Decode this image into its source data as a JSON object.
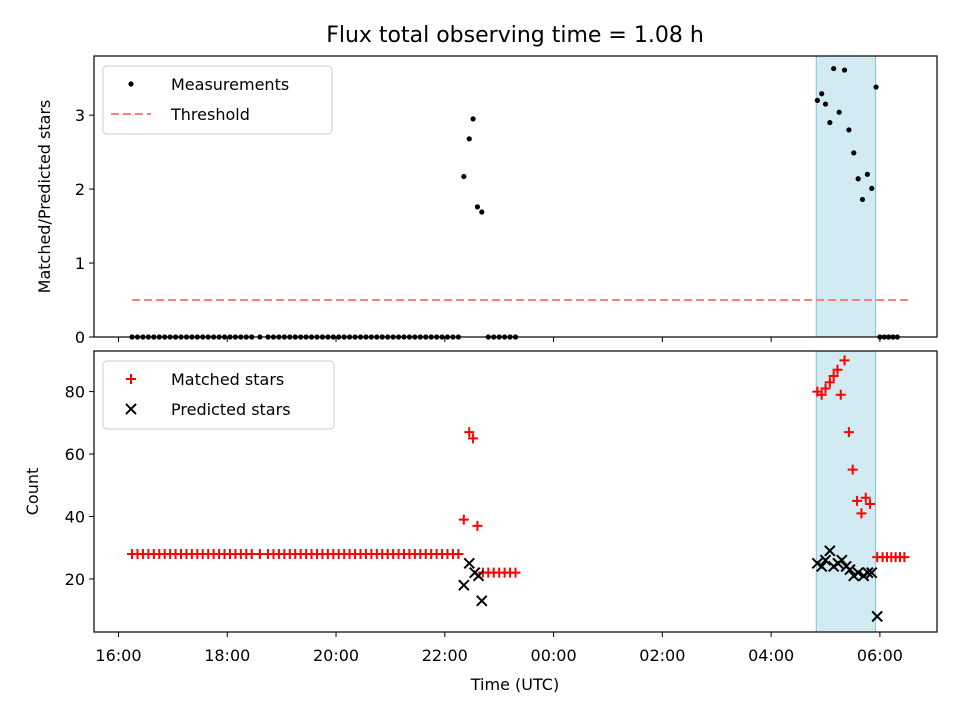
{
  "chart_data": {
    "title": "Flux total observing time = 1.08 h",
    "xlabel": "Time (UTC)",
    "x_tick_labels": [
      "16:00",
      "18:00",
      "20:00",
      "22:00",
      "00:00",
      "02:00",
      "04:00",
      "06:00"
    ],
    "x_ticks_hours": [
      16,
      18,
      20,
      22,
      24,
      26,
      28,
      30
    ],
    "xlim_hours": [
      15.55,
      31.05
    ],
    "shaded_span_hours": [
      28.83,
      29.92
    ],
    "shade_color": "#add8e6",
    "panels": [
      {
        "type": "scatter",
        "ylabel": "Matched/Predicted stars",
        "ylim": [
          0,
          3.8
        ],
        "y_ticks": [
          0,
          1,
          2,
          3
        ],
        "legend_position": "upper-left",
        "series": [
          {
            "name": "Measurements",
            "marker": "dot",
            "color": "#000000",
            "points": [
              [
                16.25,
                0
              ],
              [
                16.35,
                0
              ],
              [
                16.45,
                0
              ],
              [
                16.55,
                0
              ],
              [
                16.65,
                0
              ],
              [
                16.75,
                0
              ],
              [
                16.85,
                0
              ],
              [
                16.95,
                0
              ],
              [
                17.05,
                0
              ],
              [
                17.15,
                0
              ],
              [
                17.25,
                0
              ],
              [
                17.35,
                0
              ],
              [
                17.45,
                0
              ],
              [
                17.55,
                0
              ],
              [
                17.65,
                0
              ],
              [
                17.75,
                0
              ],
              [
                17.85,
                0
              ],
              [
                17.95,
                0
              ],
              [
                18.05,
                0
              ],
              [
                18.15,
                0
              ],
              [
                18.25,
                0
              ],
              [
                18.35,
                0
              ],
              [
                18.45,
                0
              ],
              [
                18.6,
                0
              ],
              [
                18.75,
                0
              ],
              [
                18.85,
                0
              ],
              [
                18.95,
                0
              ],
              [
                19.05,
                0
              ],
              [
                19.15,
                0
              ],
              [
                19.25,
                0
              ],
              [
                19.35,
                0
              ],
              [
                19.45,
                0
              ],
              [
                19.55,
                0
              ],
              [
                19.65,
                0
              ],
              [
                19.75,
                0
              ],
              [
                19.85,
                0
              ],
              [
                19.95,
                0
              ],
              [
                20.05,
                0
              ],
              [
                20.15,
                0
              ],
              [
                20.25,
                0
              ],
              [
                20.35,
                0
              ],
              [
                20.45,
                0
              ],
              [
                20.55,
                0
              ],
              [
                20.65,
                0
              ],
              [
                20.75,
                0
              ],
              [
                20.85,
                0
              ],
              [
                20.95,
                0
              ],
              [
                21.05,
                0
              ],
              [
                21.15,
                0
              ],
              [
                21.25,
                0
              ],
              [
                21.35,
                0
              ],
              [
                21.45,
                0
              ],
              [
                21.55,
                0
              ],
              [
                21.65,
                0
              ],
              [
                21.75,
                0
              ],
              [
                21.85,
                0
              ],
              [
                21.95,
                0
              ],
              [
                22.05,
                0
              ],
              [
                22.15,
                0
              ],
              [
                22.25,
                0
              ],
              [
                22.35,
                2.17
              ],
              [
                22.45,
                2.68
              ],
              [
                22.52,
                2.95
              ],
              [
                22.6,
                1.76
              ],
              [
                22.68,
                1.69
              ],
              [
                22.8,
                0
              ],
              [
                22.9,
                0
              ],
              [
                23.0,
                0
              ],
              [
                23.1,
                0
              ],
              [
                23.2,
                0
              ],
              [
                23.3,
                0
              ],
              [
                28.85,
                3.2
              ],
              [
                28.93,
                3.29
              ],
              [
                29.0,
                3.15
              ],
              [
                29.08,
                2.9
              ],
              [
                29.15,
                3.63
              ],
              [
                29.25,
                3.04
              ],
              [
                29.35,
                3.61
              ],
              [
                29.43,
                2.8
              ],
              [
                29.52,
                2.49
              ],
              [
                29.6,
                2.14
              ],
              [
                29.68,
                1.86
              ],
              [
                29.77,
                2.2
              ],
              [
                29.85,
                2.01
              ],
              [
                29.93,
                3.38
              ],
              [
                30.0,
                0
              ],
              [
                30.08,
                0
              ],
              [
                30.16,
                0
              ],
              [
                30.24,
                0
              ],
              [
                30.32,
                0
              ]
            ]
          },
          {
            "name": "Threshold",
            "type": "line",
            "style": "dashed",
            "color": "#ff7f7f",
            "points": [
              [
                16.25,
                0.5
              ],
              [
                30.55,
                0.5
              ]
            ]
          }
        ]
      },
      {
        "type": "scatter",
        "ylabel": "Count",
        "ylim": [
          3,
          93
        ],
        "y_ticks": [
          20,
          40,
          60,
          80
        ],
        "legend_position": "upper-left",
        "series": [
          {
            "name": "Matched stars",
            "marker": "plus",
            "color": "#ff0000",
            "points": [
              [
                16.25,
                28
              ],
              [
                16.35,
                28
              ],
              [
                16.45,
                28
              ],
              [
                16.55,
                28
              ],
              [
                16.65,
                28
              ],
              [
                16.75,
                28
              ],
              [
                16.85,
                28
              ],
              [
                16.95,
                28
              ],
              [
                17.05,
                28
              ],
              [
                17.15,
                28
              ],
              [
                17.25,
                28
              ],
              [
                17.35,
                28
              ],
              [
                17.45,
                28
              ],
              [
                17.55,
                28
              ],
              [
                17.65,
                28
              ],
              [
                17.75,
                28
              ],
              [
                17.85,
                28
              ],
              [
                17.95,
                28
              ],
              [
                18.05,
                28
              ],
              [
                18.15,
                28
              ],
              [
                18.25,
                28
              ],
              [
                18.35,
                28
              ],
              [
                18.45,
                28
              ],
              [
                18.6,
                28
              ],
              [
                18.75,
                28
              ],
              [
                18.85,
                28
              ],
              [
                18.95,
                28
              ],
              [
                19.05,
                28
              ],
              [
                19.15,
                28
              ],
              [
                19.25,
                28
              ],
              [
                19.35,
                28
              ],
              [
                19.45,
                28
              ],
              [
                19.55,
                28
              ],
              [
                19.65,
                28
              ],
              [
                19.75,
                28
              ],
              [
                19.85,
                28
              ],
              [
                19.95,
                28
              ],
              [
                20.05,
                28
              ],
              [
                20.15,
                28
              ],
              [
                20.25,
                28
              ],
              [
                20.35,
                28
              ],
              [
                20.45,
                28
              ],
              [
                20.55,
                28
              ],
              [
                20.65,
                28
              ],
              [
                20.75,
                28
              ],
              [
                20.85,
                28
              ],
              [
                20.95,
                28
              ],
              [
                21.05,
                28
              ],
              [
                21.15,
                28
              ],
              [
                21.25,
                28
              ],
              [
                21.35,
                28
              ],
              [
                21.45,
                28
              ],
              [
                21.55,
                28
              ],
              [
                21.65,
                28
              ],
              [
                21.75,
                28
              ],
              [
                21.85,
                28
              ],
              [
                21.95,
                28
              ],
              [
                22.05,
                28
              ],
              [
                22.15,
                28
              ],
              [
                22.25,
                28
              ],
              [
                22.35,
                39
              ],
              [
                22.45,
                67
              ],
              [
                22.52,
                65
              ],
              [
                22.6,
                37
              ],
              [
                22.7,
                22
              ],
              [
                22.8,
                22
              ],
              [
                22.9,
                22
              ],
              [
                23.0,
                22
              ],
              [
                23.1,
                22
              ],
              [
                23.2,
                22
              ],
              [
                23.3,
                22
              ],
              [
                28.85,
                80
              ],
              [
                28.93,
                79
              ],
              [
                29.0,
                81
              ],
              [
                29.08,
                83
              ],
              [
                29.15,
                85
              ],
              [
                29.22,
                87
              ],
              [
                29.28,
                79
              ],
              [
                29.35,
                90
              ],
              [
                29.43,
                67
              ],
              [
                29.5,
                55
              ],
              [
                29.58,
                45
              ],
              [
                29.66,
                41
              ],
              [
                29.74,
                46
              ],
              [
                29.82,
                44
              ],
              [
                29.95,
                27
              ],
              [
                30.05,
                27
              ],
              [
                30.13,
                27
              ],
              [
                30.21,
                27
              ],
              [
                30.29,
                27
              ],
              [
                30.37,
                27
              ],
              [
                30.45,
                27
              ]
            ]
          },
          {
            "name": "Predicted stars",
            "marker": "x",
            "color": "#000000",
            "points": [
              [
                22.35,
                18
              ],
              [
                22.45,
                25
              ],
              [
                22.55,
                22
              ],
              [
                22.62,
                21
              ],
              [
                22.68,
                13
              ],
              [
                28.85,
                25
              ],
              [
                28.93,
                24
              ],
              [
                29.0,
                26
              ],
              [
                29.08,
                29
              ],
              [
                29.15,
                24
              ],
              [
                29.23,
                25
              ],
              [
                29.3,
                26
              ],
              [
                29.38,
                24
              ],
              [
                29.45,
                23
              ],
              [
                29.52,
                21
              ],
              [
                29.6,
                22
              ],
              [
                29.7,
                21
              ],
              [
                29.78,
                22
              ],
              [
                29.85,
                22
              ],
              [
                29.95,
                8
              ]
            ]
          }
        ]
      }
    ]
  }
}
